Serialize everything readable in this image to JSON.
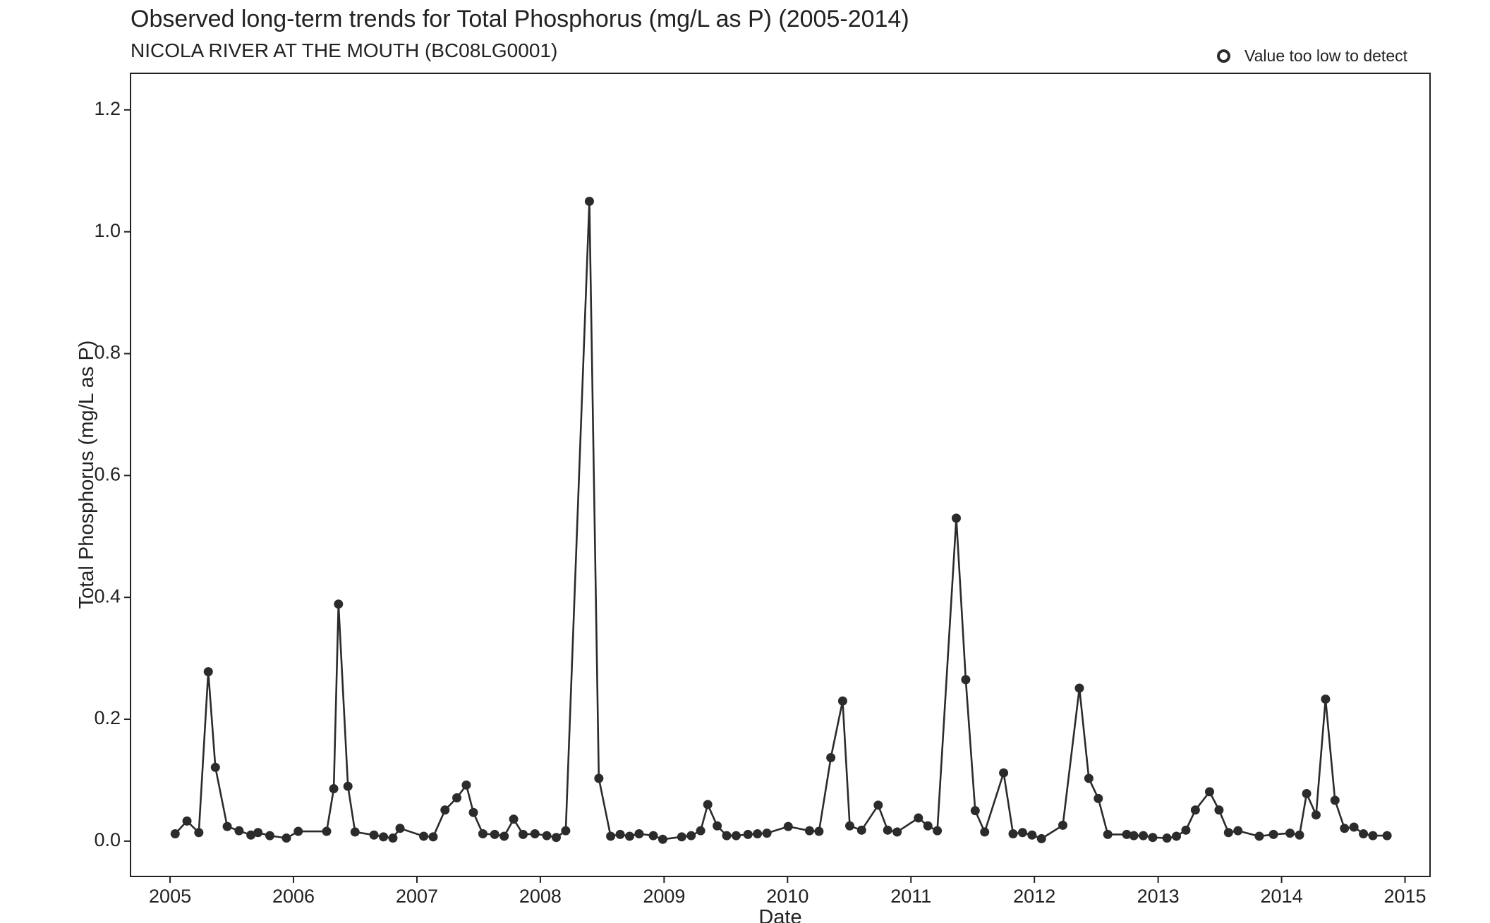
{
  "chart_data": {
    "type": "line",
    "title": "Observed long-term trends for Total Phosphorus (mg/L as P) (2005-2014)",
    "subtitle": "NICOLA RIVER AT THE MOUTH (BC08LG0001)",
    "xlabel": "Date",
    "ylabel": "Total Phosphorus (mg/L as P)",
    "xlim": [
      "2004-09-06",
      "2015-03-16"
    ],
    "ylim": [
      -0.058,
      1.26
    ],
    "x_ticks": [
      "2005",
      "2006",
      "2007",
      "2008",
      "2009",
      "2010",
      "2011",
      "2012",
      "2013",
      "2014",
      "2015"
    ],
    "y_ticks": [
      "0.0",
      "0.2",
      "0.4",
      "0.6",
      "0.8",
      "1.0",
      "1.2"
    ],
    "legend": {
      "label": "Value too low to detect",
      "marker": "open-circle",
      "placement": "top-right"
    },
    "grid": false,
    "colors": {
      "line": "#2b2b2b",
      "point": "#2b2b2b",
      "axis": "#222222"
    },
    "series": [
      {
        "x": [
          "2005-01-16",
          "2005-02-20",
          "2005-03-27",
          "2005-04-24",
          "2005-05-15",
          "2005-06-19",
          "2005-07-24",
          "2005-08-28",
          "2005-09-18",
          "2005-10-23",
          "2005-12-11",
          "2006-01-15",
          "2006-04-09",
          "2006-04-30",
          "2006-05-14",
          "2006-06-11",
          "2006-07-02",
          "2006-08-27",
          "2006-09-24",
          "2006-10-22",
          "2006-11-12",
          "2007-01-21",
          "2007-02-18",
          "2007-03-25",
          "2007-04-29",
          "2007-05-27",
          "2007-06-17",
          "2007-07-15",
          "2007-08-19",
          "2007-09-16",
          "2007-10-14",
          "2007-11-11",
          "2007-12-16",
          "2008-01-20",
          "2008-02-17",
          "2008-03-16",
          "2008-05-25",
          "2008-06-22",
          "2008-07-27",
          "2008-08-24",
          "2008-09-21",
          "2008-10-19",
          "2008-11-30",
          "2008-12-28",
          "2009-02-22",
          "2009-03-22",
          "2009-04-19",
          "2009-05-10",
          "2009-06-07",
          "2009-07-05",
          "2009-08-02",
          "2009-09-06",
          "2009-10-04",
          "2009-11-01",
          "2010-01-03",
          "2010-03-07",
          "2010-04-04",
          "2010-05-09",
          "2010-06-13",
          "2010-07-04",
          "2010-08-08",
          "2010-09-26",
          "2010-10-24",
          "2010-11-21",
          "2011-01-23",
          "2011-02-20",
          "2011-03-20",
          "2011-05-15",
          "2011-06-12",
          "2011-07-10",
          "2011-08-07",
          "2011-10-02",
          "2011-10-30",
          "2011-11-27",
          "2011-12-25",
          "2012-01-22",
          "2012-03-25",
          "2012-05-13",
          "2012-06-10",
          "2012-07-08",
          "2012-08-05",
          "2012-09-30",
          "2012-10-21",
          "2012-11-18",
          "2012-12-16",
          "2013-01-27",
          "2013-02-24",
          "2013-03-24",
          "2013-04-21",
          "2013-06-02",
          "2013-06-30",
          "2013-07-28",
          "2013-08-25",
          "2013-10-27",
          "2013-12-08",
          "2014-01-26",
          "2014-02-23",
          "2014-03-16",
          "2014-04-13",
          "2014-05-11",
          "2014-06-08",
          "2014-07-06",
          "2014-08-03",
          "2014-08-31",
          "2014-09-28",
          "2014-11-09"
        ],
        "y": [
          0.012,
          0.033,
          0.014,
          0.278,
          0.121,
          0.024,
          0.017,
          0.01,
          0.014,
          0.009,
          0.005,
          0.016,
          0.016,
          0.086,
          0.389,
          0.09,
          0.015,
          0.01,
          0.007,
          0.005,
          0.021,
          0.008,
          0.007,
          0.051,
          0.071,
          0.092,
          0.047,
          0.012,
          0.011,
          0.008,
          0.036,
          0.011,
          0.012,
          0.009,
          0.006,
          0.017,
          1.05,
          0.103,
          0.008,
          0.011,
          0.008,
          0.012,
          0.009,
          0.003,
          0.007,
          0.009,
          0.017,
          0.06,
          0.025,
          0.009,
          0.009,
          0.011,
          0.012,
          0.013,
          0.024,
          0.017,
          0.016,
          0.137,
          0.23,
          0.025,
          0.018,
          0.059,
          0.018,
          0.015,
          0.038,
          0.025,
          0.017,
          0.53,
          0.265,
          0.05,
          0.015,
          0.112,
          0.012,
          0.014,
          0.01,
          0.004,
          0.026,
          0.251,
          0.103,
          0.07,
          0.011,
          0.011,
          0.009,
          0.009,
          0.006,
          0.005,
          0.008,
          0.018,
          0.051,
          0.081,
          0.051,
          0.014,
          0.017,
          0.008,
          0.011,
          0.013,
          0.01,
          0.078,
          0.043,
          0.233,
          0.067,
          0.021,
          0.023,
          0.012,
          0.009,
          0.009
        ]
      }
    ]
  }
}
